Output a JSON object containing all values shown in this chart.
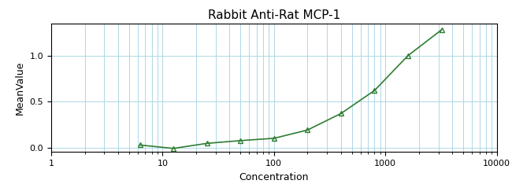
{
  "title": "Rabbit Anti-Rat MCP-1",
  "xlabel": "Concentration",
  "ylabel": "MeanValue",
  "data_x": [
    6.25,
    12.5,
    25,
    50,
    100,
    200,
    400,
    800,
    1600,
    3200
  ],
  "data_y": [
    0.027,
    -0.01,
    0.045,
    0.075,
    0.1,
    0.19,
    0.37,
    0.62,
    1.0,
    1.28
  ],
  "xlim": [
    1,
    10000
  ],
  "ylim": [
    -0.05,
    1.35
  ],
  "yticks": [
    0.0,
    0.5,
    1.0
  ],
  "line_color": "#2e7d32",
  "marker_color": "#2e7d32",
  "grid_color": "#add8e6",
  "bg_color": "#ffffff",
  "title_fontsize": 11,
  "label_fontsize": 9,
  "tick_fontsize": 8
}
